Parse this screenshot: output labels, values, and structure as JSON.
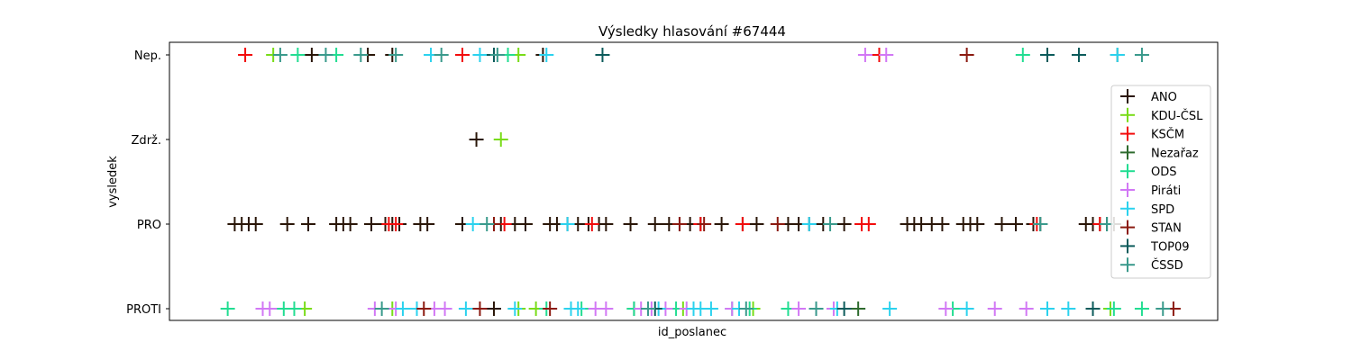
{
  "chart_data": {
    "type": "scatter",
    "title": "Výsledky hlasování #67444",
    "xlabel": "id_poslanec",
    "ylabel": "vysledek",
    "categories": [
      "PROTI",
      "PRO",
      "Zdrž.",
      "Nep."
    ],
    "xlim": [
      0,
      290
    ],
    "legend_position": "right",
    "grid": false,
    "marker": "+",
    "series": [
      {
        "name": "ANO",
        "color": "#2a1608",
        "points": [
          [
            36,
            "Nep."
          ],
          [
            52,
            "Nep."
          ],
          [
            59,
            "Nep."
          ],
          [
            102,
            "Nep."
          ],
          [
            83,
            "Zdrž."
          ],
          [
            14,
            "PRO"
          ],
          [
            16,
            "PRO"
          ],
          [
            18,
            "PRO"
          ],
          [
            20,
            "PRO"
          ],
          [
            29,
            "PRO"
          ],
          [
            35,
            "PRO"
          ],
          [
            43,
            "PRO"
          ],
          [
            45,
            "PRO"
          ],
          [
            47,
            "PRO"
          ],
          [
            53,
            "PRO"
          ],
          [
            57,
            "PRO"
          ],
          [
            59,
            "PRO"
          ],
          [
            61,
            "PRO"
          ],
          [
            67,
            "PRO"
          ],
          [
            69,
            "PRO"
          ],
          [
            79,
            "PRO"
          ],
          [
            90,
            "PRO"
          ],
          [
            94,
            "PRO"
          ],
          [
            97,
            "PRO"
          ],
          [
            104,
            "PRO"
          ],
          [
            106,
            "PRO"
          ],
          [
            109,
            "PRO"
          ],
          [
            112,
            "PRO"
          ],
          [
            115,
            "PRO"
          ],
          [
            118,
            "PRO"
          ],
          [
            120,
            "PRO"
          ],
          [
            127,
            "PRO"
          ],
          [
            134,
            "PRO"
          ],
          [
            138,
            "PRO"
          ],
          [
            141,
            "PRO"
          ],
          [
            144,
            "PRO"
          ],
          [
            147,
            "PRO"
          ],
          [
            153,
            "PRO"
          ],
          [
            159,
            "PRO"
          ],
          [
            163,
            "PRO"
          ],
          [
            172,
            "PRO"
          ],
          [
            175,
            "PRO"
          ],
          [
            178,
            "PRO"
          ],
          [
            182,
            "PRO"
          ],
          [
            188,
            "PRO"
          ],
          [
            206,
            "PRO"
          ],
          [
            208,
            "PRO"
          ],
          [
            210,
            "PRO"
          ],
          [
            213,
            "PRO"
          ],
          [
            216,
            "PRO"
          ],
          [
            222,
            "PRO"
          ],
          [
            224,
            "PRO"
          ],
          [
            226,
            "PRO"
          ],
          [
            233,
            "PRO"
          ],
          [
            237,
            "PRO"
          ],
          [
            242,
            "PRO"
          ],
          [
            244,
            "PRO"
          ],
          [
            257,
            "PRO"
          ],
          [
            259,
            "PRO"
          ],
          [
            261,
            "PRO"
          ],
          [
            263,
            "PRO"
          ],
          [
            265,
            "PRO"
          ],
          [
            88,
            "PROTI"
          ],
          [
            128,
            "PROTI"
          ]
        ]
      },
      {
        "name": "KDU-ČSL",
        "color": "#79dc18",
        "points": [
          [
            25,
            "Nep."
          ],
          [
            95,
            "Nep."
          ],
          [
            90,
            "Zdrž."
          ],
          [
            34,
            "PROTI"
          ],
          [
            59,
            "PROTI"
          ],
          [
            95,
            "PROTI"
          ],
          [
            100,
            "PROTI"
          ],
          [
            142,
            "PROTI"
          ],
          [
            162,
            "PROTI"
          ],
          [
            264,
            "PROTI"
          ]
        ]
      },
      {
        "name": "KSČM",
        "color": "#f20c0c",
        "points": [
          [
            17,
            "Nep."
          ],
          [
            79,
            "Nep."
          ],
          [
            198,
            "Nep."
          ],
          [
            58,
            "PRO"
          ],
          [
            60,
            "PRO"
          ],
          [
            88,
            "PRO"
          ],
          [
            91,
            "PRO"
          ],
          [
            116,
            "PRO"
          ],
          [
            147,
            "PRO"
          ],
          [
            159,
            "PRO"
          ],
          [
            193,
            "PRO"
          ],
          [
            195,
            "PRO"
          ],
          [
            243,
            "PRO"
          ],
          [
            261,
            "PRO"
          ]
        ]
      },
      {
        "name": "Nezařaz",
        "color": "#2e6b2e",
        "points": [
          [
            266,
            "Nep."
          ],
          [
            192,
            "PROTI"
          ]
        ]
      },
      {
        "name": "ODS",
        "color": "#22dd92",
        "points": [
          [
            32,
            "Nep."
          ],
          [
            43,
            "Nep."
          ],
          [
            92,
            "Nep."
          ],
          [
            239,
            "Nep."
          ],
          [
            12,
            "PROTI"
          ],
          [
            28,
            "PROTI"
          ],
          [
            31,
            "PROTI"
          ],
          [
            103,
            "PROTI"
          ],
          [
            113,
            "PROTI"
          ],
          [
            128,
            "PROTI"
          ],
          [
            140,
            "PROTI"
          ],
          [
            156,
            "PROTI"
          ],
          [
            161,
            "PROTI"
          ],
          [
            172,
            "PROTI"
          ],
          [
            219,
            "PROTI"
          ],
          [
            265,
            "PROTI"
          ],
          [
            273,
            "PROTI"
          ]
        ]
      },
      {
        "name": "Piráti",
        "color": "#d278f5",
        "points": [
          [
            194,
            "Nep."
          ],
          [
            200,
            "Nep."
          ],
          [
            22,
            "PROTI"
          ],
          [
            24,
            "PROTI"
          ],
          [
            54,
            "PROTI"
          ],
          [
            60,
            "PROTI"
          ],
          [
            71,
            "PROTI"
          ],
          [
            74,
            "PROTI"
          ],
          [
            117,
            "PROTI"
          ],
          [
            120,
            "PROTI"
          ],
          [
            130,
            "PROTI"
          ],
          [
            133,
            "PROTI"
          ],
          [
            137,
            "PROTI"
          ],
          [
            143,
            "PROTI"
          ],
          [
            156,
            "PROTI"
          ],
          [
            175,
            "PROTI"
          ],
          [
            180,
            "PROTI"
          ],
          [
            185,
            "PROTI"
          ],
          [
            217,
            "PROTI"
          ],
          [
            231,
            "PROTI"
          ],
          [
            240,
            "PROTI"
          ]
        ]
      },
      {
        "name": "SPD",
        "color": "#2bd2ee",
        "points": [
          [
            70,
            "Nep."
          ],
          [
            84,
            "Nep."
          ],
          [
            103,
            "Nep."
          ],
          [
            266,
            "Nep."
          ],
          [
            82,
            "PRO"
          ],
          [
            109,
            "PRO"
          ],
          [
            178,
            "PRO"
          ],
          [
            62,
            "PROTI"
          ],
          [
            66,
            "PROTI"
          ],
          [
            80,
            "PROTI"
          ],
          [
            94,
            "PROTI"
          ],
          [
            110,
            "PROTI"
          ],
          [
            112,
            "PROTI"
          ],
          [
            135,
            "PROTI"
          ],
          [
            145,
            "PROTI"
          ],
          [
            147,
            "PROTI"
          ],
          [
            150,
            "PROTI"
          ],
          [
            158,
            "PROTI"
          ],
          [
            186,
            "PROTI"
          ],
          [
            201,
            "PROTI"
          ],
          [
            223,
            "PROTI"
          ],
          [
            246,
            "PROTI"
          ],
          [
            252,
            "PROTI"
          ]
        ]
      },
      {
        "name": "STAN",
        "color": "#8b1a10",
        "points": [
          [
            223,
            "Nep."
          ],
          [
            88,
            "PRO"
          ],
          [
            141,
            "PRO"
          ],
          [
            148,
            "PRO"
          ],
          [
            169,
            "PRO"
          ],
          [
            68,
            "PROTI"
          ],
          [
            84,
            "PROTI"
          ],
          [
            104,
            "PROTI"
          ],
          [
            282,
            "PROTI"
          ]
        ]
      },
      {
        "name": "TOP09",
        "color": "#0c5b5b",
        "points": [
          [
            88,
            "Nep."
          ],
          [
            119,
            "Nep."
          ],
          [
            246,
            "Nep."
          ],
          [
            255,
            "Nep."
          ],
          [
            134,
            "PROTI"
          ],
          [
            188,
            "PROTI"
          ],
          [
            259,
            "PROTI"
          ]
        ]
      },
      {
        "name": "ČSSD",
        "color": "#3a9a8c",
        "points": [
          [
            27,
            "Nep."
          ],
          [
            40,
            "Nep."
          ],
          [
            50,
            "Nep."
          ],
          [
            60,
            "Nep."
          ],
          [
            73,
            "Nep."
          ],
          [
            89,
            "Nep."
          ],
          [
            273,
            "Nep."
          ],
          [
            86,
            "PRO"
          ],
          [
            184,
            "PRO"
          ],
          [
            244,
            "PRO"
          ],
          [
            263,
            "PRO"
          ],
          [
            56,
            "PROTI"
          ],
          [
            132,
            "PROTI"
          ],
          [
            160,
            "PROTI"
          ],
          [
            180,
            "PROTI"
          ],
          [
            279,
            "PROTI"
          ]
        ]
      }
    ]
  }
}
